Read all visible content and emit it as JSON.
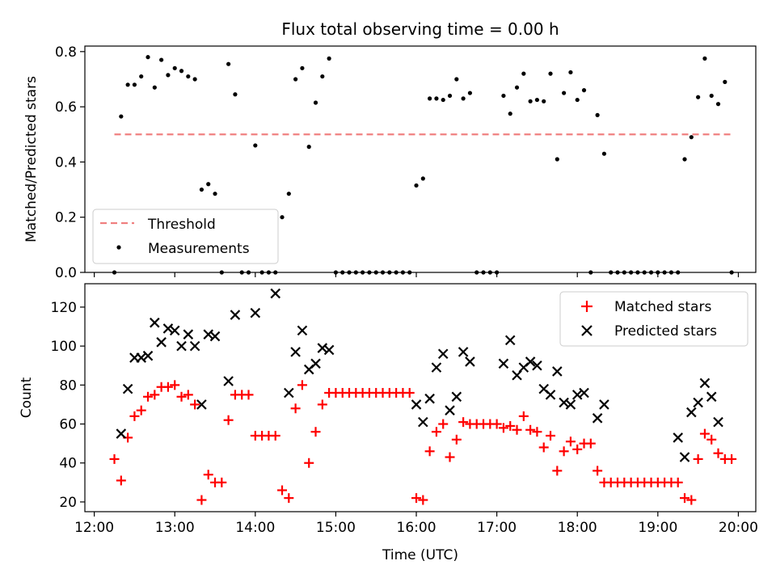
{
  "chart_data": [
    {
      "type": "scatter",
      "title": "Flux total observing time = 0.00 h",
      "xlabel": "",
      "ylabel": "Matched/Predicted stars",
      "xlim": [
        "11:53",
        "20:13"
      ],
      "ylim": [
        0,
        0.82
      ],
      "x_tick_labels": [],
      "y_ticks": [
        0.0,
        0.2,
        0.4,
        0.6,
        0.8
      ],
      "y_tick_labels": [
        "0.0",
        "0.2",
        "0.4",
        "0.6",
        "0.8"
      ],
      "legend": {
        "position": "lower-left",
        "entries": [
          "Threshold",
          "Measurements"
        ]
      },
      "series": [
        {
          "name": "Threshold",
          "kind": "dashed-line",
          "color": "#f08080",
          "x": [
            "12:15",
            "19:55"
          ],
          "y": [
            0.5,
            0.5
          ]
        },
        {
          "name": "Measurements",
          "kind": "dots",
          "color": "#000000",
          "x": [
            "12:15",
            "12:20",
            "12:25",
            "12:30",
            "12:35",
            "12:40",
            "12:45",
            "12:50",
            "12:55",
            "13:00",
            "13:05",
            "13:10",
            "13:15",
            "13:20",
            "13:25",
            "13:30",
            "13:35",
            "13:40",
            "13:45",
            "13:50",
            "13:55",
            "14:00",
            "14:05",
            "14:10",
            "14:15",
            "14:20",
            "14:25",
            "14:30",
            "14:35",
            "14:40",
            "14:45",
            "14:50",
            "14:55",
            "15:00",
            "15:05",
            "15:10",
            "15:15",
            "15:20",
            "15:25",
            "15:30",
            "15:35",
            "15:40",
            "15:45",
            "15:50",
            "15:55",
            "16:00",
            "16:05",
            "16:10",
            "16:15",
            "16:20",
            "16:25",
            "16:30",
            "16:35",
            "16:40",
            "16:45",
            "16:50",
            "16:55",
            "17:00",
            "17:05",
            "17:10",
            "17:15",
            "17:20",
            "17:25",
            "17:30",
            "17:35",
            "17:40",
            "17:45",
            "17:50",
            "17:55",
            "18:00",
            "18:05",
            "18:10",
            "18:15",
            "18:20",
            "18:25",
            "18:30",
            "18:35",
            "18:40",
            "18:45",
            "18:50",
            "18:55",
            "19:00",
            "19:05",
            "19:10",
            "19:15",
            "19:20",
            "19:25",
            "19:30",
            "19:35",
            "19:40",
            "19:45",
            "19:50",
            "19:55"
          ],
          "y": [
            0.0,
            0.565,
            0.68,
            0.68,
            0.71,
            0.78,
            0.67,
            0.77,
            0.715,
            0.74,
            0.73,
            0.71,
            0.7,
            0.3,
            0.32,
            0.285,
            0.0,
            0.755,
            0.645,
            0.0,
            0.0,
            0.46,
            0.0,
            0.0,
            0.0,
            0.2,
            0.285,
            0.7,
            0.74,
            0.455,
            0.615,
            0.71,
            0.775,
            0.0,
            0.0,
            0.0,
            0.0,
            0.0,
            0.0,
            0.0,
            0.0,
            0.0,
            0.0,
            0.0,
            0.0,
            0.315,
            0.34,
            0.63,
            0.63,
            0.625,
            0.64,
            0.7,
            0.63,
            0.65,
            0.0,
            0.0,
            0.0,
            0.0,
            0.64,
            0.575,
            0.67,
            0.72,
            0.62,
            0.625,
            0.62,
            0.72,
            0.41,
            0.65,
            0.725,
            0.625,
            0.66,
            0.0,
            0.57,
            0.43,
            0.0,
            0.0,
            0.0,
            0.0,
            0.0,
            0.0,
            0.0,
            0.0,
            0.0,
            0.0,
            0.0,
            0.41,
            0.49,
            0.635,
            0.775,
            0.64,
            0.61,
            0.69,
            0.0
          ]
        }
      ]
    },
    {
      "type": "scatter",
      "title": "",
      "xlabel": "Time (UTC)",
      "ylabel": "Count",
      "xlim": [
        "11:53",
        "20:13"
      ],
      "ylim": [
        15,
        132
      ],
      "x_ticks": [
        "12:00",
        "13:00",
        "14:00",
        "15:00",
        "16:00",
        "17:00",
        "18:00",
        "19:00",
        "20:00"
      ],
      "x_tick_labels": [
        "12:00",
        "13:00",
        "14:00",
        "15:00",
        "16:00",
        "17:00",
        "18:00",
        "19:00",
        "20:00"
      ],
      "y_ticks": [
        20,
        40,
        60,
        80,
        100,
        120
      ],
      "y_tick_labels": [
        "20",
        "40",
        "60",
        "80",
        "100",
        "120"
      ],
      "legend": {
        "position": "top-right",
        "entries": [
          "Matched stars",
          "Predicted stars"
        ]
      },
      "series": [
        {
          "name": "Matched stars",
          "marker": "plus",
          "color": "#ff0000",
          "x": [
            "12:15",
            "12:20",
            "12:25",
            "12:30",
            "12:35",
            "12:40",
            "12:45",
            "12:50",
            "12:55",
            "13:00",
            "13:05",
            "13:10",
            "13:15",
            "13:20",
            "13:25",
            "13:30",
            "13:35",
            "13:40",
            "13:45",
            "13:50",
            "13:55",
            "14:00",
            "14:05",
            "14:10",
            "14:15",
            "14:20",
            "14:25",
            "14:30",
            "14:35",
            "14:40",
            "14:45",
            "14:50",
            "14:55",
            "15:00",
            "15:05",
            "15:10",
            "15:15",
            "15:20",
            "15:25",
            "15:30",
            "15:35",
            "15:40",
            "15:45",
            "15:50",
            "15:55",
            "16:00",
            "16:05",
            "16:10",
            "16:15",
            "16:20",
            "16:25",
            "16:30",
            "16:35",
            "16:40",
            "16:45",
            "16:50",
            "16:55",
            "17:00",
            "17:05",
            "17:10",
            "17:15",
            "17:20",
            "17:25",
            "17:30",
            "17:35",
            "17:40",
            "17:45",
            "17:50",
            "17:55",
            "18:00",
            "18:05",
            "18:10",
            "18:15",
            "18:20",
            "18:25",
            "18:30",
            "18:35",
            "18:40",
            "18:45",
            "18:50",
            "18:55",
            "19:00",
            "19:05",
            "19:10",
            "19:15",
            "19:20",
            "19:25",
            "19:30",
            "19:35",
            "19:40",
            "19:45",
            "19:50",
            "19:55"
          ],
          "y": [
            42,
            31,
            53,
            64,
            67,
            74,
            75,
            79,
            79,
            80,
            74,
            75,
            70,
            21,
            34,
            30,
            30,
            62,
            75,
            75,
            75,
            54,
            54,
            54,
            54,
            26,
            22,
            68,
            80,
            40,
            56,
            70,
            76,
            76,
            76,
            76,
            76,
            76,
            76,
            76,
            76,
            76,
            76,
            76,
            76,
            22,
            21,
            46,
            56,
            60,
            43,
            52,
            61,
            60,
            60,
            60,
            60,
            60,
            58,
            59,
            57,
            64,
            57,
            56,
            48,
            54,
            36,
            46,
            51,
            47,
            50,
            50,
            36,
            30,
            30,
            30,
            30,
            30,
            30,
            30,
            30,
            30,
            30,
            30,
            30,
            22,
            21,
            42,
            55,
            52,
            45,
            42,
            42
          ]
        },
        {
          "name": "Predicted stars",
          "marker": "x",
          "color": "#000000",
          "x": [
            "12:20",
            "12:25",
            "12:30",
            "12:35",
            "12:40",
            "12:45",
            "12:50",
            "12:55",
            "13:00",
            "13:05",
            "13:10",
            "13:15",
            "13:20",
            "13:25",
            "13:30",
            "13:40",
            "13:45",
            "14:00",
            "14:15",
            "14:25",
            "14:30",
            "14:35",
            "14:40",
            "14:45",
            "14:50",
            "14:55",
            "16:00",
            "16:05",
            "16:10",
            "16:15",
            "16:20",
            "16:25",
            "16:30",
            "16:35",
            "16:40",
            "17:05",
            "17:10",
            "17:15",
            "17:20",
            "17:25",
            "17:30",
            "17:35",
            "17:40",
            "17:45",
            "17:50",
            "17:55",
            "18:00",
            "18:05",
            "18:15",
            "18:20",
            "19:15",
            "19:20",
            "19:25",
            "19:30",
            "19:35",
            "19:40",
            "19:45"
          ],
          "y": [
            55,
            78,
            94,
            94,
            95,
            112,
            102,
            109,
            108,
            100,
            106,
            100,
            70,
            106,
            105,
            82,
            116,
            117,
            127,
            76,
            97,
            108,
            88,
            91,
            99,
            98,
            70,
            61,
            73,
            89,
            96,
            67,
            74,
            97,
            92,
            91,
            103,
            85,
            89,
            92,
            90,
            78,
            75,
            87,
            71,
            70,
            75,
            76,
            63,
            70,
            53,
            43,
            66,
            71,
            81,
            74,
            61
          ]
        }
      ]
    }
  ]
}
